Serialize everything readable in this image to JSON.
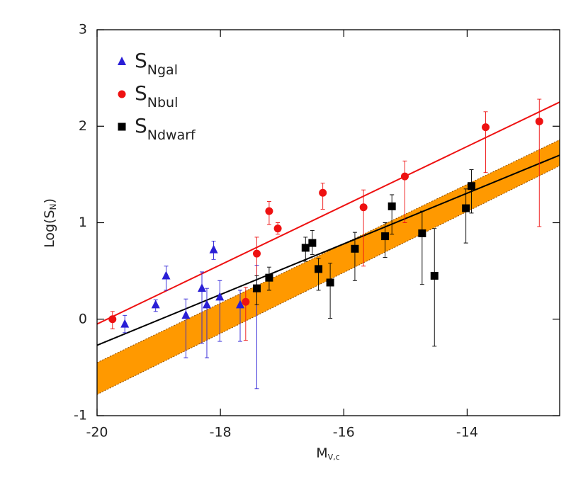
{
  "chart_data": {
    "type": "scatter",
    "xlabel": {
      "main": "M",
      "sub": "V,c"
    },
    "ylabel": {
      "main": "Log(S",
      "sub": "N",
      "tail": ")"
    },
    "xlim": [
      -20,
      -12.5
    ],
    "ylim": [
      -1,
      3
    ],
    "xticks": [
      -20,
      -18,
      -16,
      -14
    ],
    "yticks": [
      -1,
      0,
      1,
      2,
      3
    ],
    "legend": "upper left",
    "series": [
      {
        "name": "S",
        "name_sub": "Ngal",
        "color": "#2a1fd6",
        "marker": "triangle",
        "x": [
          -19.55,
          -19.05,
          -18.88,
          -18.56,
          -18.3,
          -18.22,
          -18.11,
          -18.01,
          -17.68,
          -17.41
        ],
        "values": [
          -0.05,
          0.15,
          0.45,
          0.04,
          0.32,
          0.15,
          0.72,
          0.23,
          0.15,
          0.32
        ],
        "err_minus": [
          0.09,
          0.07,
          0.15,
          0.44,
          0.57,
          0.55,
          0.1,
          0.46,
          0.38,
          1.04
        ],
        "err_plus": [
          0.09,
          0.05,
          0.1,
          0.17,
          0.17,
          0.17,
          0.09,
          0.17,
          0.15,
          0.24
        ]
      },
      {
        "name": "S",
        "name_sub": "Nbul",
        "color": "#ee1111",
        "marker": "circle",
        "x": [
          -19.75,
          -17.59,
          -17.41,
          -17.21,
          -17.07,
          -16.34,
          -15.68,
          -15.01,
          -13.7,
          -12.83
        ],
        "values": [
          0.0,
          0.18,
          0.68,
          1.12,
          0.94,
          1.31,
          1.16,
          1.48,
          1.99,
          2.05
        ],
        "err_minus": [
          0.1,
          0.4,
          0.23,
          0.14,
          0.06,
          0.17,
          0.61,
          0.48,
          0.47,
          1.09
        ],
        "err_plus": [
          0.08,
          0.15,
          0.17,
          0.1,
          0.06,
          0.1,
          0.18,
          0.16,
          0.16,
          0.23
        ]
      },
      {
        "name": "S",
        "name_sub": "Ndwarf",
        "color": "#000000",
        "marker": "square",
        "x": [
          -17.41,
          -17.21,
          -16.62,
          -16.51,
          -16.41,
          -16.22,
          -15.82,
          -15.33,
          -15.22,
          -14.73,
          -14.53,
          -14.02,
          -13.93
        ],
        "values": [
          0.32,
          0.43,
          0.74,
          0.79,
          0.52,
          0.38,
          0.73,
          0.86,
          1.17,
          0.89,
          0.45,
          1.15,
          1.38
        ],
        "err_minus": [
          0.17,
          0.13,
          0.14,
          0.12,
          0.22,
          0.37,
          0.33,
          0.22,
          0.29,
          0.53,
          0.73,
          0.36,
          0.28
        ],
        "err_plus": [
          0.13,
          0.11,
          0.11,
          0.13,
          0.11,
          0.2,
          0.17,
          0.14,
          0.12,
          0.23,
          0.49,
          0.2,
          0.17
        ]
      }
    ],
    "lines": [
      {
        "color": "#ee1111",
        "x": [
          -20,
          -12.5
        ],
        "y": [
          -0.05,
          2.25
        ]
      },
      {
        "color": "#000000",
        "x": [
          -20,
          -12.5
        ],
        "y": [
          -0.27,
          1.7
        ]
      }
    ],
    "band": {
      "color": "#ff9900",
      "edge_color": "#8a4a00",
      "x": [
        -20,
        -12.5
      ],
      "y_high": [
        -0.45,
        1.86
      ],
      "y_low": [
        -0.78,
        1.59
      ]
    }
  }
}
